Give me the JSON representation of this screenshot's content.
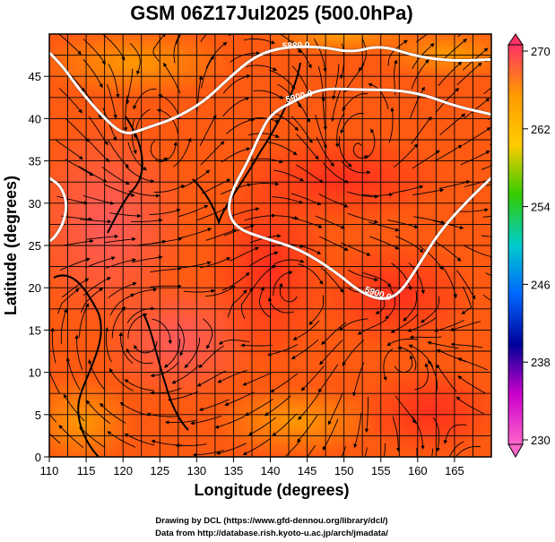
{
  "chart_data": {
    "type": "heatmap",
    "title": "GSM 06Z17Jul2025 (500.0hPa)",
    "xlabel": "Longitude (degrees)",
    "ylabel": "Latitude  (degrees)",
    "xlim": [
      110,
      170
    ],
    "ylim": [
      0,
      50
    ],
    "x_ticks": [
      110,
      115,
      120,
      125,
      130,
      135,
      140,
      145,
      150,
      155,
      160,
      165
    ],
    "y_ticks": [
      0,
      5,
      10,
      15,
      20,
      25,
      30,
      35,
      40,
      45
    ],
    "grid": true,
    "colorbar": {
      "ticks": [
        270,
        262,
        254,
        246,
        238,
        230
      ],
      "min": 230,
      "max": 270
    },
    "contours": [
      {
        "label": "5900.0",
        "points": [
          [
            170,
            40.5
          ],
          [
            165,
            41.5
          ],
          [
            161,
            42.8
          ],
          [
            157,
            43.4
          ],
          [
            152,
            43.4
          ],
          [
            147,
            43.6
          ],
          [
            143,
            42.0
          ],
          [
            140,
            40.5
          ],
          [
            138.5,
            38.0
          ],
          [
            137,
            35.0
          ],
          [
            134.8,
            31.5
          ],
          [
            134.2,
            29.0
          ],
          [
            135.5,
            27.0
          ],
          [
            139,
            25.9
          ],
          [
            144,
            24.6
          ],
          [
            149,
            21.8
          ],
          [
            152,
            19.6
          ],
          [
            155,
            18.5
          ],
          [
            157.5,
            19.2
          ],
          [
            160,
            22.5
          ],
          [
            163,
            26.7
          ],
          [
            167,
            30.5
          ],
          [
            170,
            33.0
          ]
        ]
      },
      {
        "label": "5880.0",
        "points": [
          [
            110,
            47.8
          ],
          [
            112,
            46.0
          ],
          [
            114,
            43.5
          ],
          [
            117,
            40.5
          ],
          [
            119,
            38.8
          ],
          [
            120.5,
            38.2
          ],
          [
            122,
            38.5
          ],
          [
            123.5,
            39.0
          ],
          [
            127,
            40.0
          ],
          [
            131,
            42.0
          ],
          [
            134,
            44.5
          ],
          [
            138,
            47.5
          ],
          [
            142,
            48.5
          ],
          [
            147,
            48.5
          ],
          [
            151,
            47.8
          ],
          [
            155,
            48.7
          ],
          [
            160,
            47.3
          ],
          [
            165,
            46.8
          ],
          [
            170,
            47.0
          ]
        ]
      },
      {
        "label": "",
        "points": [
          [
            110,
            33.0
          ],
          [
            111.6,
            32.0
          ],
          [
            112.4,
            30.0
          ],
          [
            112.0,
            27.8
          ],
          [
            110.8,
            26.0
          ],
          [
            110,
            25.5
          ]
        ]
      }
    ],
    "label_values": [
      "5900.0",
      "5880.0",
      "5900.0"
    ],
    "temperature_field": "500hPa temperature (K), mostly 264–270 with maxima near 268–270 over 120–135E, 10–30N"
  },
  "credits": {
    "line1": "Drawing by DCL (https://www.gfd-dennou.org/library/dcl/)",
    "line2": "Data from http://database.rish.kyoto-u.ac.jp/arch/jmadata/"
  },
  "colors": {
    "cbar_stops": [
      "#ff3366",
      "#ff9900",
      "#ffcc00",
      "#33cc00",
      "#00cccc",
      "#0066ff",
      "#000099",
      "#cc00cc",
      "#ff66cc"
    ]
  }
}
